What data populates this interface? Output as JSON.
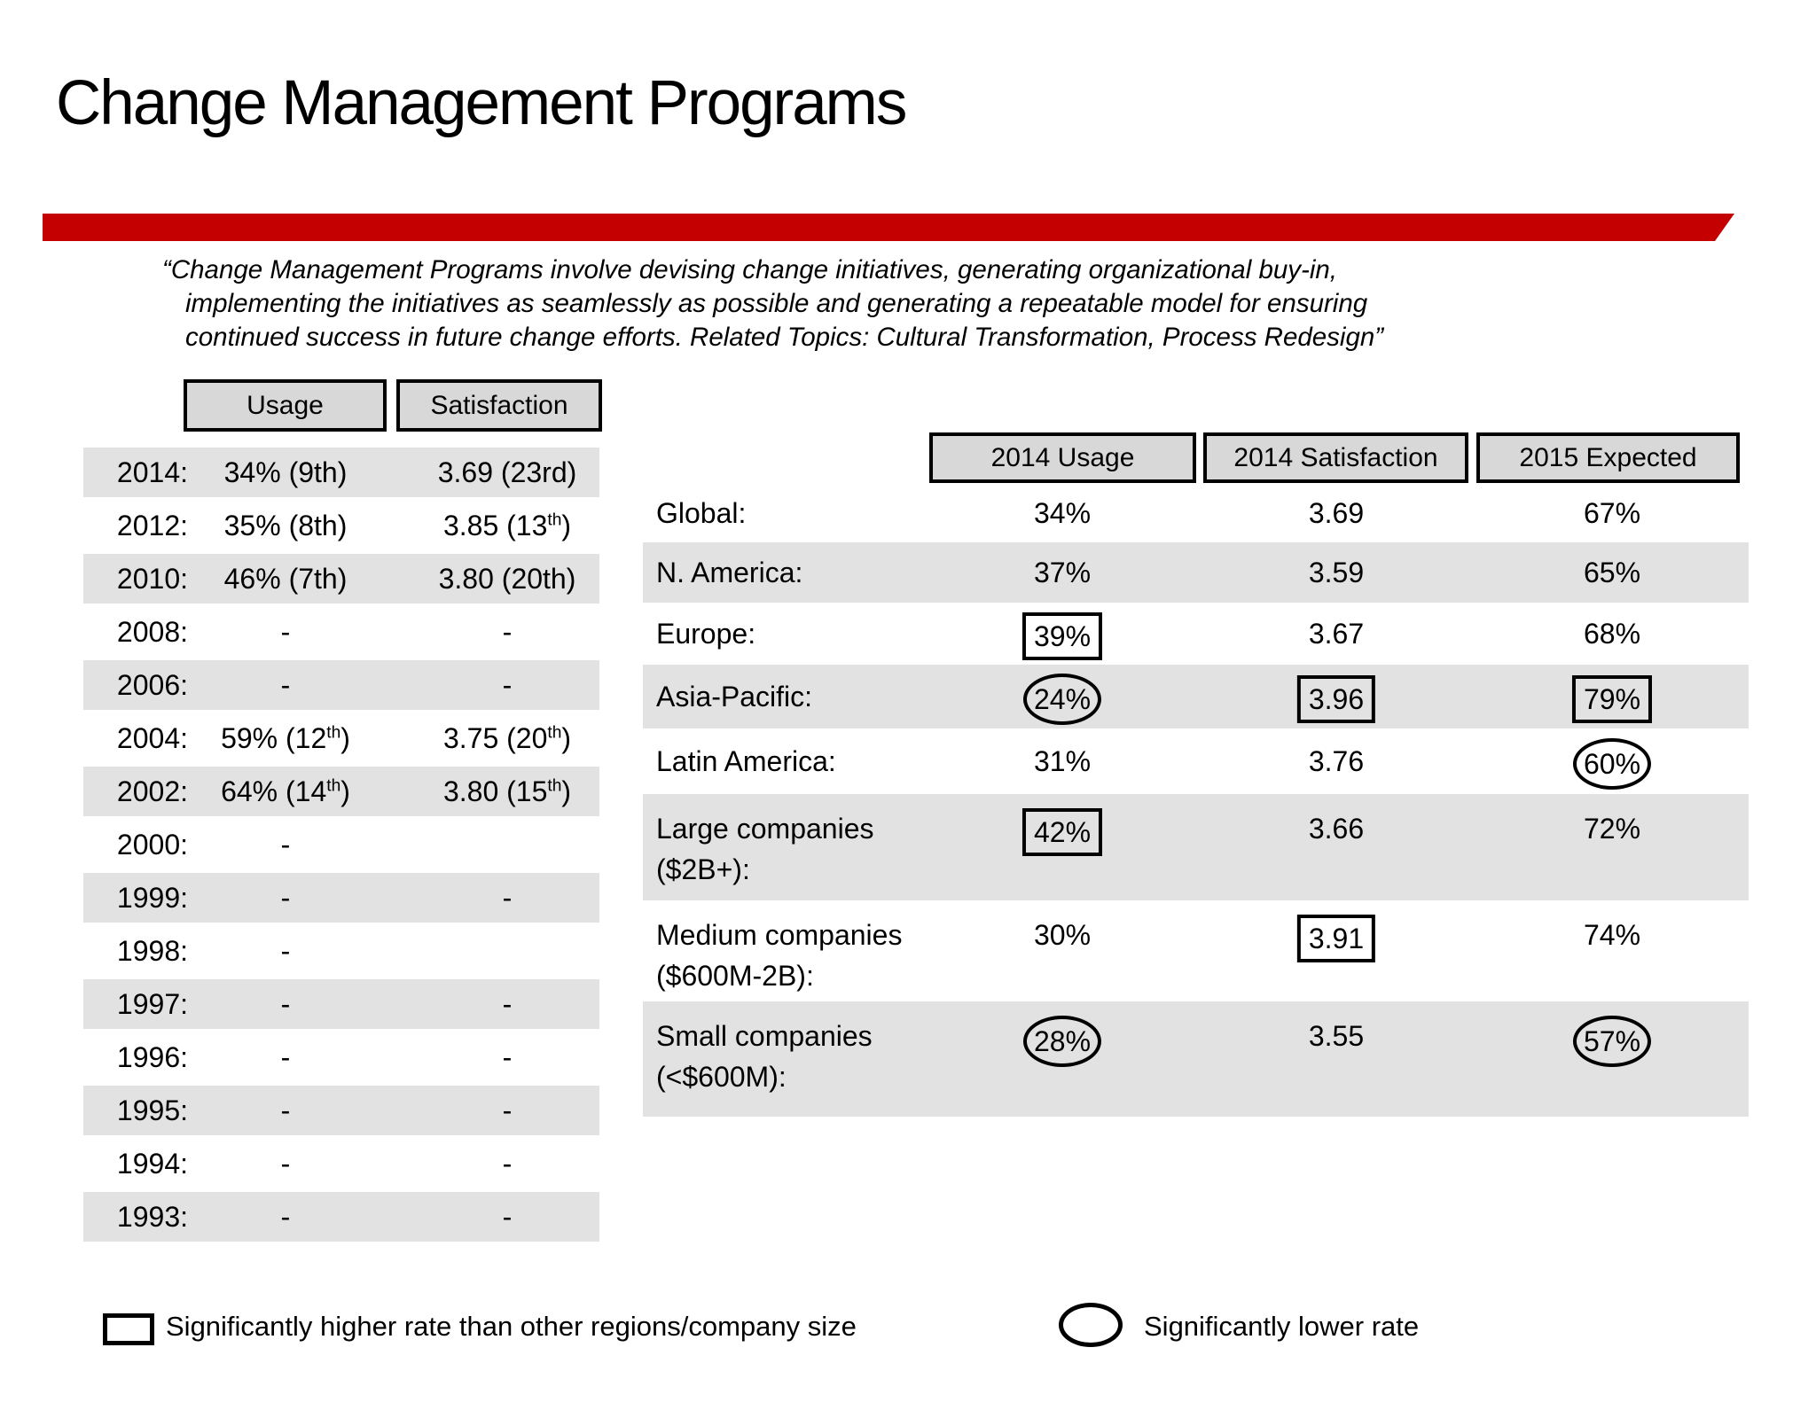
{
  "title": "Change Management Programs",
  "quote": {
    "line1": "“Change Management Programs involve devising change initiatives, generating organizational buy-in,",
    "line2": "implementing the initiatives as seamlessly as possible and generating a repeatable model for ensuring",
    "line3": "continued success in future change efforts.  Related Topics: Cultural Transformation, Process Redesign”"
  },
  "history_table": {
    "headers": [
      "Usage",
      "Satisfaction"
    ],
    "rows": [
      {
        "year": "2014:",
        "usage": "34% (9th)",
        "satisfaction": "3.69 (23rd)",
        "shaded": true
      },
      {
        "year": "2012:",
        "usage": "35% (8th)",
        "satisfaction": "3.85 (13{th})",
        "shaded": false
      },
      {
        "year": "2010:",
        "usage": "46% (7th)",
        "satisfaction": "3.80 (20th)",
        "shaded": true
      },
      {
        "year": "2008:",
        "usage": "-",
        "satisfaction": "-",
        "shaded": false
      },
      {
        "year": "2006:",
        "usage": "-",
        "satisfaction": "-",
        "shaded": true
      },
      {
        "year": "2004:",
        "usage": "59% (12{th})",
        "satisfaction": "3.75 (20{th})",
        "shaded": false
      },
      {
        "year": "2002:",
        "usage": "64% (14{th})",
        "satisfaction": "3.80 (15{th})",
        "shaded": true
      },
      {
        "year": "2000:",
        "usage": "-",
        "satisfaction": "",
        "shaded": false
      },
      {
        "year": "1999:",
        "usage": "-",
        "satisfaction": "-",
        "shaded": true
      },
      {
        "year": "1998:",
        "usage": "-",
        "satisfaction": "",
        "shaded": false
      },
      {
        "year": "1997:",
        "usage": "-",
        "satisfaction": "-",
        "shaded": true
      },
      {
        "year": "1996:",
        "usage": "-",
        "satisfaction": "-",
        "shaded": false
      },
      {
        "year": "1995:",
        "usage": "-",
        "satisfaction": "-",
        "shaded": true
      },
      {
        "year": "1994:",
        "usage": "-",
        "satisfaction": "-",
        "shaded": false
      },
      {
        "year": "1993:",
        "usage": "-",
        "satisfaction": "-",
        "shaded": true
      }
    ]
  },
  "breakdown_table": {
    "headers": [
      "2014 Usage",
      "2014 Satisfaction",
      "2015 Expected"
    ],
    "rows": [
      {
        "label": "Global:",
        "label2": "",
        "usage": {
          "text": "34%",
          "mark": "none"
        },
        "satisfaction": {
          "text": "3.69",
          "mark": "none"
        },
        "expected": {
          "text": "67%",
          "mark": "none"
        },
        "shaded": false
      },
      {
        "label": "N. America:",
        "label2": "",
        "usage": {
          "text": "37%",
          "mark": "none"
        },
        "satisfaction": {
          "text": "3.59",
          "mark": "none"
        },
        "expected": {
          "text": "65%",
          "mark": "none"
        },
        "shaded": true
      },
      {
        "label": "Europe:",
        "label2": "",
        "usage": {
          "text": "39%",
          "mark": "box"
        },
        "satisfaction": {
          "text": "3.67",
          "mark": "none"
        },
        "expected": {
          "text": "68%",
          "mark": "none"
        },
        "shaded": false
      },
      {
        "label": "Asia-Pacific:",
        "label2": "",
        "usage": {
          "text": "24%",
          "mark": "oval"
        },
        "satisfaction": {
          "text": "3.96",
          "mark": "box"
        },
        "expected": {
          "text": "79%",
          "mark": "box"
        },
        "shaded": true
      },
      {
        "label": "Latin America:",
        "label2": "",
        "usage": {
          "text": "31%",
          "mark": "none"
        },
        "satisfaction": {
          "text": "3.76",
          "mark": "none"
        },
        "expected": {
          "text": "60%",
          "mark": "oval"
        },
        "shaded": false
      },
      {
        "label": "Large companies",
        "label2": "($2B+):",
        "usage": {
          "text": "42%",
          "mark": "box"
        },
        "satisfaction": {
          "text": "3.66",
          "mark": "none"
        },
        "expected": {
          "text": "72%",
          "mark": "none"
        },
        "shaded": true
      },
      {
        "label": "Medium companies",
        "label2": "($600M-2B):",
        "usage": {
          "text": "30%",
          "mark": "none"
        },
        "satisfaction": {
          "text": "3.91",
          "mark": "box"
        },
        "expected": {
          "text": "74%",
          "mark": "none"
        },
        "shaded": false
      },
      {
        "label": "Small companies",
        "label2": "(<$600M):",
        "usage": {
          "text": "28%",
          "mark": "oval"
        },
        "satisfaction": {
          "text": "3.55",
          "mark": "none"
        },
        "expected": {
          "text": "57%",
          "mark": "oval"
        },
        "shaded": true
      }
    ]
  },
  "legend": {
    "higher_label": "Significantly higher rate than other regions/company size",
    "lower_label": "Significantly lower rate"
  },
  "colors": {
    "accent_red": "#c40000",
    "row_shade": "#e2e2e2",
    "header_fill": "#d8d8d8"
  }
}
